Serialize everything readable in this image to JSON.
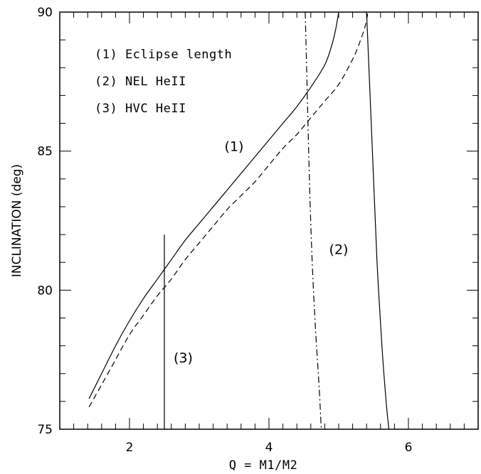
{
  "chart_data": {
    "type": "line",
    "xlabel": "Q = M1/M2",
    "ylabel": "INCLINATION (deg)",
    "xlim": [
      1.0,
      7.0
    ],
    "ylim": [
      75,
      90
    ],
    "xticks_major": [
      2,
      4,
      6
    ],
    "xticks_minor_step": 0.2,
    "yticks_major": [
      75,
      80,
      85,
      90
    ],
    "yticks_minor_step": 1,
    "grid": false,
    "legend": {
      "placement": "top-left",
      "entries": [
        "(1) Eclipse length",
        "(2) NEL HeII",
        "(3) HVC HeII"
      ]
    },
    "annotations": [
      {
        "text": "(1)",
        "x": 3.5,
        "y": 85.0
      },
      {
        "text": "(2)",
        "x": 5.0,
        "y": 81.3
      },
      {
        "text": "(3)",
        "x": 2.77,
        "y": 77.4
      }
    ],
    "series": [
      {
        "name": "(1)",
        "style": "solid",
        "x": [
          1.42,
          1.6,
          1.8,
          2.0,
          2.2,
          2.4,
          2.6,
          2.8,
          3.0,
          3.2,
          3.4,
          3.6,
          3.8,
          4.0,
          4.2,
          4.4,
          4.6,
          4.8,
          4.9,
          4.95,
          4.98,
          5.0
        ],
        "y": [
          76.1,
          77.0,
          78.0,
          78.9,
          79.7,
          80.4,
          81.1,
          81.8,
          82.4,
          83.0,
          83.6,
          84.2,
          84.8,
          85.4,
          86.0,
          86.6,
          87.3,
          88.1,
          88.8,
          89.3,
          89.7,
          90.0
        ]
      },
      {
        "name": "(1) lower",
        "style": "dashed",
        "x": [
          1.42,
          1.6,
          1.8,
          2.0,
          2.2,
          2.4,
          2.6,
          2.8,
          3.0,
          3.2,
          3.4,
          3.6,
          3.8,
          4.0,
          4.2,
          4.4,
          4.6,
          4.8,
          5.0,
          5.2,
          5.3,
          5.38,
          5.42
        ],
        "y": [
          75.8,
          76.6,
          77.5,
          78.4,
          79.1,
          79.8,
          80.4,
          81.1,
          81.7,
          82.3,
          82.9,
          83.4,
          83.9,
          84.5,
          85.1,
          85.6,
          86.2,
          86.8,
          87.4,
          88.3,
          88.9,
          89.5,
          90.0
        ]
      },
      {
        "name": "(2)",
        "style": "dash-dot",
        "x": [
          4.52,
          4.55,
          4.58,
          4.62,
          4.67,
          4.72,
          4.75
        ],
        "y": [
          90.0,
          87.0,
          84.0,
          81.0,
          78.5,
          76.5,
          75.0
        ]
      },
      {
        "name": "(2) right",
        "style": "solid",
        "x": [
          5.4,
          5.45,
          5.5,
          5.55,
          5.62,
          5.68,
          5.72
        ],
        "y": [
          90.0,
          87.0,
          84.0,
          81.0,
          78.0,
          76.0,
          75.0
        ]
      },
      {
        "name": "(3)",
        "style": "solid",
        "x": [
          2.5,
          2.5
        ],
        "y": [
          75.0,
          82.0
        ]
      }
    ]
  }
}
